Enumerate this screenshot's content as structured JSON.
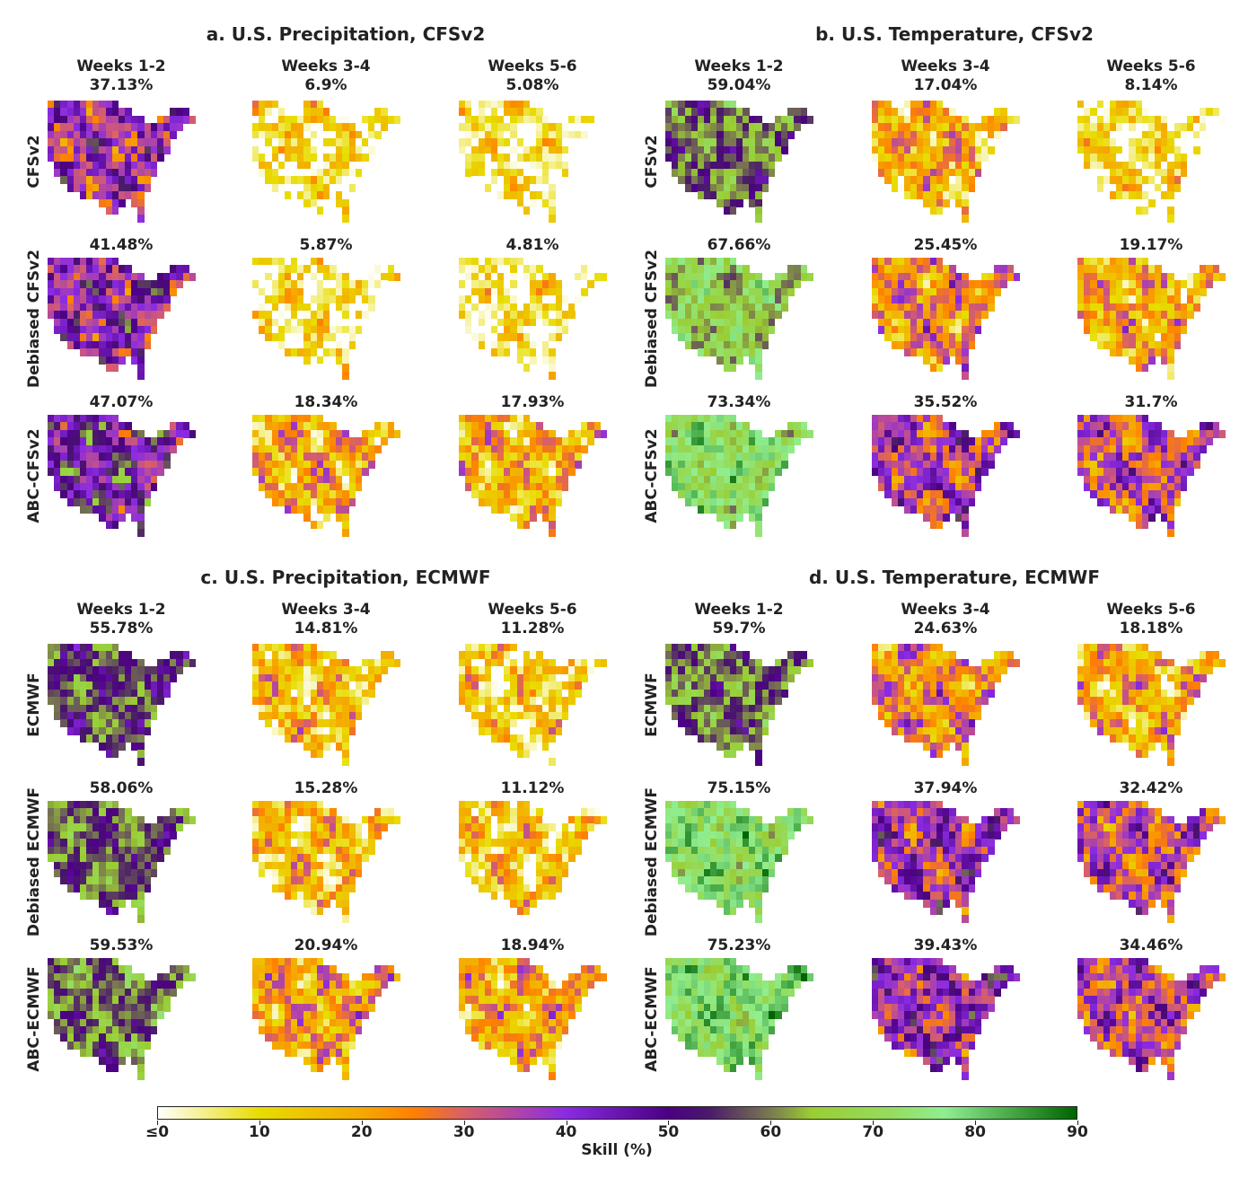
{
  "chart_data": {
    "type": "heatmap",
    "panels": [
      {
        "title": "a. U.S. Precipitation, CFSv2",
        "columns": [
          "Weeks 1-2",
          "Weeks 3-4",
          "Weeks 5-6"
        ],
        "rows": [
          "CFSv2",
          "Debiased CFSv2",
          "ABC-CFSv2"
        ],
        "skill": [
          [
            "37.13%",
            "6.9%",
            "5.08%"
          ],
          [
            "41.48%",
            "5.87%",
            "4.81%"
          ],
          [
            "47.07%",
            "18.34%",
            "17.93%"
          ]
        ]
      },
      {
        "title": "b. U.S. Temperature, CFSv2",
        "columns": [
          "Weeks 1-2",
          "Weeks 3-4",
          "Weeks 5-6"
        ],
        "rows": [
          "CFSv2",
          "Debiased CFSv2",
          "ABC-CFSv2"
        ],
        "skill": [
          [
            "59.04%",
            "17.04%",
            "8.14%"
          ],
          [
            "67.66%",
            "25.45%",
            "19.17%"
          ],
          [
            "73.34%",
            "35.52%",
            "31.7%"
          ]
        ]
      },
      {
        "title": "c. U.S. Precipitation, ECMWF",
        "columns": [
          "Weeks 1-2",
          "Weeks 3-4",
          "Weeks 5-6"
        ],
        "rows": [
          "ECMWF",
          "Debiased ECMWF",
          "ABC-ECMWF"
        ],
        "skill": [
          [
            "55.78%",
            "14.81%",
            "11.28%"
          ],
          [
            "58.06%",
            "15.28%",
            "11.12%"
          ],
          [
            "59.53%",
            "20.94%",
            "18.94%"
          ]
        ]
      },
      {
        "title": "d. U.S. Temperature, ECMWF",
        "columns": [
          "Weeks 1-2",
          "Weeks 3-4",
          "Weeks 5-6"
        ],
        "rows": [
          "ECMWF",
          "Debiased ECMWF",
          "ABC-ECMWF"
        ],
        "skill": [
          [
            "59.7%",
            "24.63%",
            "18.18%"
          ],
          [
            "75.15%",
            "37.94%",
            "32.42%"
          ],
          [
            "75.23%",
            "39.43%",
            "34.46%"
          ]
        ]
      }
    ],
    "colorbar": {
      "label": "Skill (%)",
      "range": [
        0,
        90
      ],
      "ticks": [
        "≤0",
        "10",
        "20",
        "30",
        "40",
        "50",
        "60",
        "70",
        "80",
        "90"
      ],
      "colors": [
        [
          0,
          "#ffffff"
        ],
        [
          10,
          "#e8dc00"
        ],
        [
          20,
          "#f5a800"
        ],
        [
          25,
          "#ff8000"
        ],
        [
          30,
          "#d86068"
        ],
        [
          40,
          "#8a2be2"
        ],
        [
          50,
          "#4b0082"
        ],
        [
          54,
          "#4a1a6a"
        ],
        [
          60,
          "#7a7a50"
        ],
        [
          64,
          "#9acd32"
        ],
        [
          72,
          "#95dd60"
        ],
        [
          77,
          "#90ee90"
        ],
        [
          90,
          "#006400"
        ]
      ]
    }
  }
}
